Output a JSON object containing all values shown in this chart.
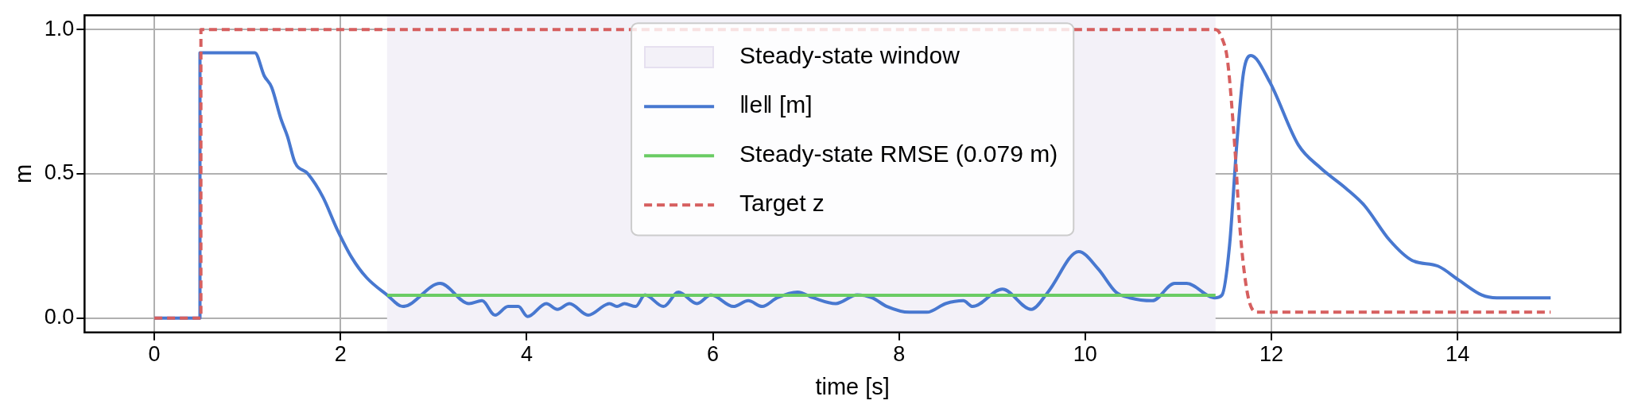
{
  "chart_data": {
    "type": "line",
    "xlabel": "time [s]",
    "ylabel": "m",
    "xlim": [
      -0.75,
      15.75
    ],
    "xticks": [
      0,
      2,
      4,
      6,
      8,
      10,
      12,
      14
    ],
    "ylim": [
      -0.05,
      1.05
    ],
    "yticks": [
      {
        "value": 0,
        "label": "0.0"
      },
      {
        "value": 0.5,
        "label": "0.5"
      },
      {
        "value": 1,
        "label": "1.0"
      }
    ],
    "grid": true,
    "legend": "top",
    "bands": [
      {
        "axis": "x",
        "from": 2.5,
        "to": 11.4,
        "label": "Steady-state window",
        "color": "#f3f1f8"
      }
    ],
    "series": [
      {
        "name": "‖e‖ [m]",
        "color": "#4878d0",
        "x": [
          0,
          0.49,
          0.49,
          1.08,
          1.18,
          1.26,
          1.36,
          1.43,
          1.51,
          1.65,
          1.81,
          1.96,
          2.12,
          2.28,
          2.5,
          2.67,
          3.07,
          3.38,
          3.52,
          3.66,
          3.8,
          3.91,
          4.01,
          4.21,
          4.33,
          4.46,
          4.66,
          4.89,
          4.97,
          5.05,
          5.17,
          5.27,
          5.47,
          5.63,
          5.83,
          5.98,
          6.22,
          6.38,
          6.53,
          6.69,
          6.91,
          7.08,
          7.32,
          7.55,
          7.71,
          7.87,
          8.11,
          8.3,
          8.5,
          8.69,
          8.79,
          9.11,
          9.42,
          9.6,
          9.93,
          10.14,
          10.33,
          10.48,
          10.72,
          10.96,
          11.09,
          11.39,
          11.47,
          11.55,
          11.63,
          11.7,
          11.78,
          11.98,
          12.29,
          12.53,
          12.8,
          13.0,
          13.27,
          13.51,
          13.79,
          14.02,
          14.26,
          14.42,
          15.0
        ],
        "values": [
          0,
          0,
          0.92,
          0.92,
          0.84,
          0.8,
          0.69,
          0.63,
          0.54,
          0.5,
          0.42,
          0.31,
          0.21,
          0.14,
          0.08,
          0.04,
          0.12,
          0.05,
          0.06,
          0.01,
          0.04,
          0.04,
          0.005,
          0.05,
          0.03,
          0.05,
          0.01,
          0.05,
          0.04,
          0.05,
          0.04,
          0.08,
          0.04,
          0.09,
          0.05,
          0.08,
          0.04,
          0.06,
          0.04,
          0.07,
          0.09,
          0.07,
          0.05,
          0.08,
          0.07,
          0.04,
          0.02,
          0.02,
          0.05,
          0.06,
          0.04,
          0.1,
          0.03,
          0.09,
          0.23,
          0.17,
          0.09,
          0.07,
          0.06,
          0.12,
          0.12,
          0.07,
          0.08,
          0.25,
          0.61,
          0.85,
          0.91,
          0.82,
          0.6,
          0.52,
          0.45,
          0.39,
          0.27,
          0.2,
          0.18,
          0.13,
          0.08,
          0.07,
          0.07
        ]
      },
      {
        "name": "Steady-state RMSE (0.079 m)",
        "color": "#6acc64",
        "x": [
          2.5,
          11.4
        ],
        "values": [
          0.079,
          0.079
        ]
      },
      {
        "name": "Target z",
        "color": "#d65f5f",
        "line_style": "dashed",
        "x": [
          0,
          0.5,
          0.5,
          11.4,
          11.47,
          11.53,
          11.61,
          11.66,
          11.74,
          11.84,
          15
        ],
        "values": [
          0,
          0,
          1,
          1,
          0.97,
          0.89,
          0.58,
          0.32,
          0.09,
          0.02,
          0.02
        ]
      }
    ]
  }
}
